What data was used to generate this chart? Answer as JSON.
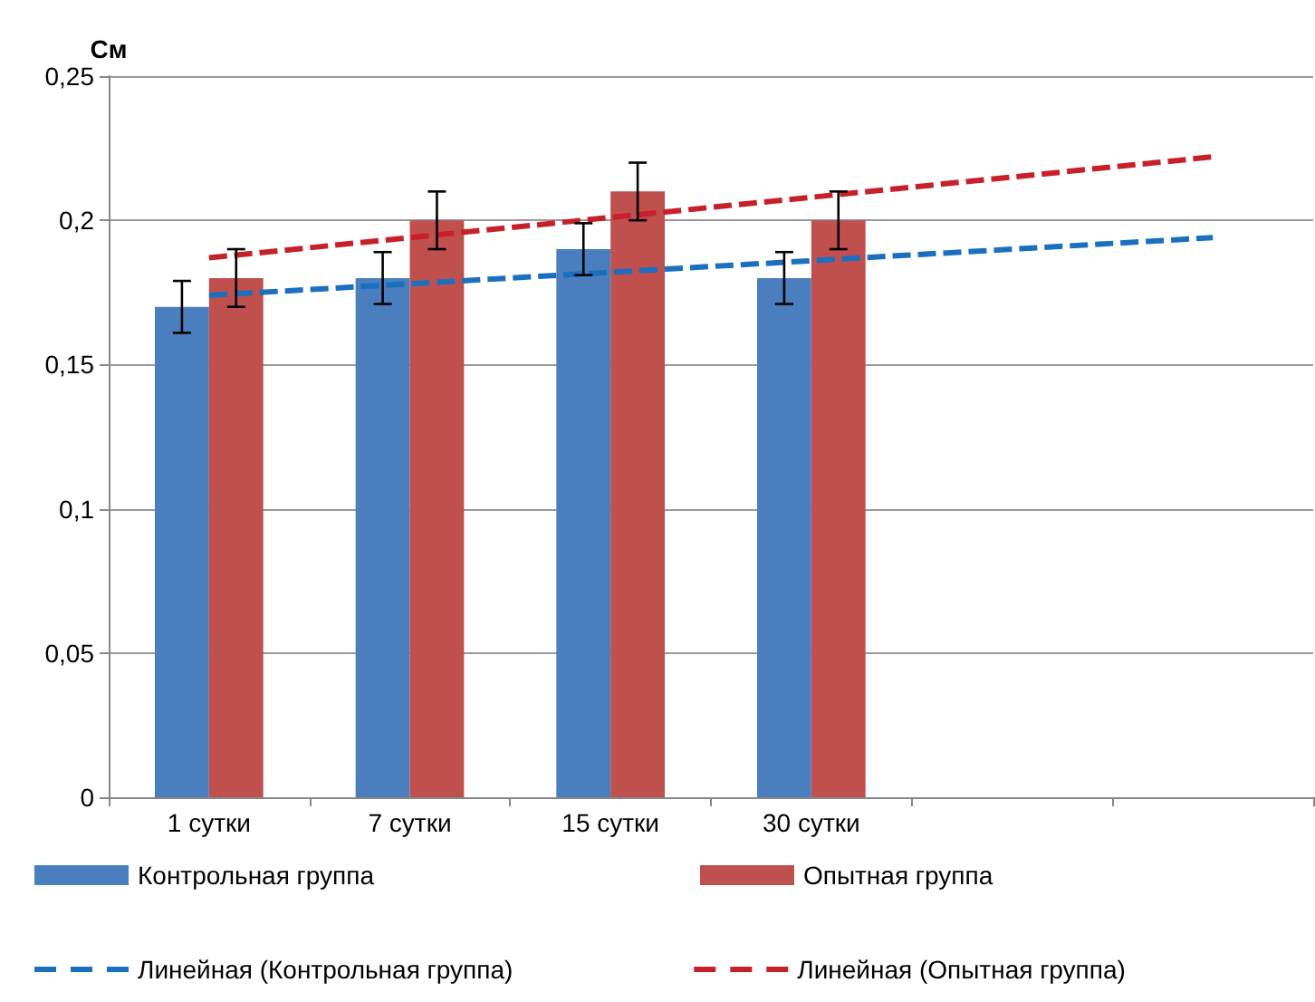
{
  "chart_data": {
    "type": "bar",
    "ylabel": "См",
    "categories": [
      "1 сутки",
      "7 сутки",
      "15 сутки",
      "30 сутки",
      null,
      null
    ],
    "series": [
      {
        "name": "Контрольная группа",
        "color": "#4a7ebf",
        "values": [
          0.17,
          0.18,
          0.19,
          0.18,
          null,
          null
        ],
        "errors": [
          0.009,
          0.009,
          0.009,
          0.009,
          null,
          null
        ]
      },
      {
        "name": "Опытная группа",
        "color": "#c0504d",
        "values": [
          0.18,
          0.2,
          0.21,
          0.2,
          null,
          null
        ],
        "errors": [
          0.01,
          0.01,
          0.01,
          0.01,
          null,
          null
        ]
      },
      {
        "name": "Линейная (Контрольная группа)",
        "type": "line",
        "line_style": "dashed",
        "color": "#1a6fbf",
        "values": [
          0.174,
          0.178,
          0.182,
          0.186,
          0.19,
          0.194
        ]
      },
      {
        "name": "Линейная (Опытная группа)",
        "type": "line",
        "line_style": "dashed",
        "color": "#c8202a",
        "values": [
          0.187,
          0.194,
          0.201,
          0.208,
          0.215,
          0.222
        ]
      }
    ],
    "ylim": [
      0,
      0.25
    ],
    "yticks": [
      0,
      {
        "value": 0.05,
        "label": "0,05"
      },
      {
        "value": 0.1,
        "label": "0,1"
      },
      {
        "value": 0.15,
        "label": "0,15"
      },
      {
        "value": 0.2,
        "label": "0,2"
      },
      {
        "value": 0.25,
        "label": "0,25"
      }
    ],
    "grid": "y",
    "legend": "bottom",
    "marker": "none"
  }
}
